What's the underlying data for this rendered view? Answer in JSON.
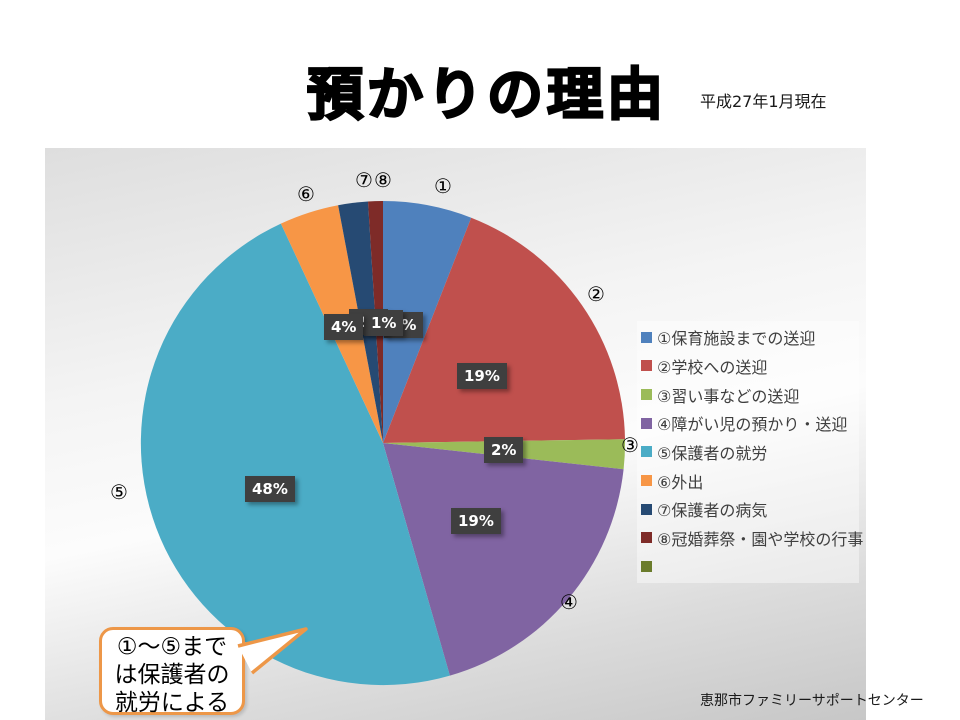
{
  "slide": {
    "title": "預かりの理由",
    "date_note": "平成27年1月現在",
    "footer": "恵那市ファミリーサポートセンター",
    "callout": {
      "line1": "①～⑤まで",
      "line2": "は保護者の",
      "line3": "就労による",
      "border_color": "#ED9748"
    }
  },
  "chart_data": {
    "type": "pie",
    "title": "預かりの理由",
    "legend_position": "right",
    "start_angle_deg": 0,
    "slices": [
      {
        "marker": "①",
        "label": "①保育施設までの送迎",
        "value": 6,
        "pct": "6%",
        "color": "#4F81BD"
      },
      {
        "marker": "②",
        "label": "②学校への送迎",
        "value": 19,
        "pct": "19%",
        "color": "#C0504D"
      },
      {
        "marker": "③",
        "label": "③習い事などの送迎",
        "value": 2,
        "pct": "2%",
        "color": "#9BBB59"
      },
      {
        "marker": "④",
        "label": "④障がい児の預かり・送迎",
        "value": 19,
        "pct": "19%",
        "color": "#8064A2"
      },
      {
        "marker": "⑤",
        "label": "⑤保護者の就労",
        "value": 48,
        "pct": "48%",
        "color": "#4BACC6"
      },
      {
        "marker": "⑥",
        "label": "⑥外出",
        "value": 4,
        "pct": "4%",
        "color": "#F79646"
      },
      {
        "marker": "⑦",
        "label": "⑦保護者の病気",
        "value": 2,
        "pct": "2%",
        "color": "#264A73"
      },
      {
        "marker": "⑧",
        "label": "⑧冠婚葬祭・園や学校の行事",
        "value": 1,
        "pct": "1%",
        "color": "#7E2B28"
      }
    ],
    "extra_legend_swatch": {
      "label": "",
      "color": "#6B7C2C"
    }
  }
}
